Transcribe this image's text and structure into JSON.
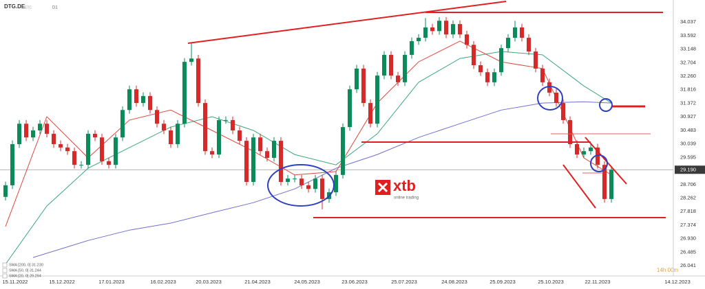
{
  "chart_data": {
    "type": "candlestick",
    "symbol": "DTG.DE",
    "symbol_note": "ETC",
    "timeframe": "D1",
    "countdown": "14h 00m",
    "logo": {
      "name": "xtb",
      "tagline": "online trading"
    },
    "colors": {
      "up": "#0b8a5a",
      "down": "#d42a2a"
    },
    "xlim": [
      -0.8,
      101.6
    ],
    "xticks": [
      {
        "value": 1.4,
        "label": "15.11.2022"
      },
      {
        "value": 8.2,
        "label": "15.12.2022"
      },
      {
        "value": 15.4,
        "label": "17.01.2023"
      },
      {
        "value": 22.9,
        "label": "16.02.2023"
      },
      {
        "value": 29.5,
        "label": "20.03.2023"
      },
      {
        "value": 36.6,
        "label": "21.04.2023"
      },
      {
        "value": 43.8,
        "label": "24.05.2023"
      },
      {
        "value": 50.7,
        "label": "23.06.2023"
      },
      {
        "value": 57.9,
        "label": "25.07.2023"
      },
      {
        "value": 65.2,
        "label": "24.08.2023"
      },
      {
        "value": 72.2,
        "label": "25.09.2023"
      },
      {
        "value": 79.2,
        "label": "25.10.2023"
      },
      {
        "value": 86,
        "label": "22.11.2023"
      },
      {
        "value": 97.6,
        "label": "14.12.2023"
      }
    ],
    "ylim": [
      25.75,
      34.76
    ],
    "yticks": [
      34.037,
      33.592,
      33.148,
      32.704,
      {
        "value": 32.26,
        "label": "32.260"
      },
      31.816,
      31.372,
      30.927,
      30.483,
      30.039,
      29.595,
      28.706,
      28.262,
      27.818,
      27.374,
      {
        "value": 26.93,
        "label": "26.930"
      },
      26.485,
      26.041
    ],
    "current_price": {
      "value": 29.19,
      "label": "29.190"
    },
    "open": [
      28.3,
      28.68,
      30.03,
      30.7,
      30.25,
      30.48,
      30.7,
      30.37,
      30.03,
      29.92,
      29.8,
      29.35,
      29.35,
      30.37,
      30.25,
      29.47,
      29.35,
      30.25,
      31.15,
      31.83,
      31.38,
      31.61,
      31.15,
      30.7,
      30.48,
      30.03,
      30.7,
      32.73,
      32.84,
      31.38,
      29.8,
      29.69,
      30.82,
      30.82,
      30.48,
      30.14,
      28.79,
      30.25,
      29.8,
      29.58,
      30.14,
      28.79,
      28.9,
      28.9,
      28.68,
      28.56,
      28.9,
      28.23,
      28.45,
      29.02,
      30.59,
      31.83,
      32.51,
      31.38,
      30.7,
      32.28,
      32.96,
      32.28,
      32.06,
      32.96,
      33.41,
      33.52,
      33.86,
      33.74,
      34.08,
      33.63,
      33.97,
      33.63,
      33.29,
      32.62,
      32.39,
      32.06,
      32.39,
      33.18,
      33.52,
      33.86,
      33.52,
      33.07,
      32.51,
      32.06,
      31.72,
      31.38,
      30.82,
      30.03,
      29.69,
      29.8,
      29.92,
      29.35,
      28.23
    ],
    "high": [
      28.8,
      30.15,
      30.82,
      30.82,
      30.6,
      30.82,
      30.82,
      30.49,
      30.15,
      30.04,
      29.92,
      29.47,
      30.49,
      30.49,
      30.37,
      29.59,
      30.37,
      31.27,
      31.95,
      31.95,
      31.73,
      31.73,
      31.27,
      30.82,
      30.6,
      30.82,
      32.85,
      33.36,
      32.96,
      31.5,
      29.92,
      30.94,
      30.94,
      30.94,
      30.6,
      30.26,
      30.37,
      30.37,
      29.92,
      30.26,
      30.26,
      29.02,
      29.02,
      29.02,
      28.8,
      29.02,
      29.02,
      28.57,
      29.14,
      30.71,
      31.95,
      32.63,
      32.63,
      31.5,
      32.4,
      33.08,
      33.08,
      32.4,
      33.08,
      33.53,
      33.64,
      34.17,
      33.98,
      34.2,
      34.2,
      34.09,
      34.09,
      33.75,
      33.41,
      32.74,
      32.51,
      32.51,
      33.3,
      33.64,
      34.08,
      33.98,
      33.64,
      33.19,
      32.63,
      32.18,
      31.84,
      31.5,
      30.94,
      30.15,
      29.92,
      30.04,
      30.04,
      29.47,
      29.31
    ],
    "low": [
      28.18,
      28.56,
      29.91,
      30.13,
      30.13,
      30.36,
      30.25,
      29.91,
      29.8,
      29.68,
      29.23,
      29.23,
      29.23,
      30.13,
      29.35,
      29.23,
      29.23,
      30.13,
      31.03,
      31.26,
      31.26,
      31.03,
      30.58,
      30.36,
      29.91,
      29.91,
      30.58,
      32.61,
      31.26,
      29.68,
      29.57,
      29.57,
      30.7,
      30.36,
      30.02,
      28.67,
      28.67,
      29.68,
      29.46,
      29.46,
      28.67,
      28.67,
      28.78,
      28.56,
      28.44,
      28.44,
      27.89,
      28.11,
      28.33,
      28.9,
      30.47,
      31.71,
      31.26,
      30.58,
      30.58,
      32.16,
      32.16,
      31.94,
      31.94,
      32.84,
      33.29,
      33.4,
      33.62,
      33.62,
      33.51,
      33.51,
      33.51,
      33.17,
      32.5,
      32.27,
      31.94,
      31.94,
      32.27,
      33.06,
      33.4,
      33.4,
      32.95,
      32.39,
      31.94,
      31.6,
      31.26,
      30.7,
      29.91,
      29.57,
      29.57,
      29.68,
      29.23,
      28.11,
      28.11
    ],
    "close": [
      28.68,
      30.03,
      30.7,
      30.25,
      30.48,
      30.7,
      30.37,
      30.03,
      29.92,
      29.8,
      29.35,
      29.35,
      30.37,
      30.25,
      29.47,
      29.35,
      30.25,
      31.15,
      31.83,
      31.38,
      31.61,
      31.15,
      30.7,
      30.48,
      30.03,
      30.7,
      32.73,
      32.84,
      31.38,
      29.8,
      29.69,
      30.82,
      30.82,
      30.48,
      30.14,
      28.79,
      30.25,
      29.8,
      29.58,
      30.14,
      28.79,
      28.9,
      28.9,
      28.68,
      28.56,
      28.9,
      28.23,
      28.45,
      29.02,
      30.59,
      31.83,
      32.51,
      31.38,
      30.7,
      32.28,
      32.96,
      32.28,
      32.06,
      32.96,
      33.41,
      33.52,
      33.86,
      33.74,
      34.08,
      33.63,
      33.97,
      33.63,
      33.29,
      32.62,
      32.39,
      32.06,
      32.39,
      33.18,
      33.52,
      33.86,
      33.52,
      33.07,
      32.51,
      32.06,
      31.72,
      31.38,
      30.82,
      30.03,
      29.69,
      29.8,
      29.92,
      29.35,
      28.23,
      29.19
    ],
    "series": [
      {
        "name": "SMA [200, 0]",
        "legend": "SMA [200, 0] 31.230",
        "color": "#6f6fd0",
        "x": [
          4,
          12,
          18,
          24,
          30,
          36,
          42,
          48,
          54,
          60,
          66,
          72,
          78,
          84,
          88
        ],
        "values": [
          26.31,
          26.87,
          27.21,
          27.44,
          27.78,
          28.11,
          28.56,
          29.24,
          29.69,
          30.25,
          30.7,
          31.15,
          31.38,
          31.42,
          31.38
        ]
      },
      {
        "name": "SMA [50, 0]",
        "legend": "SMA [50, 0] 31.244",
        "color": "#3aa87a",
        "x": [
          0,
          6,
          12,
          18,
          24,
          30,
          36,
          42,
          48,
          54,
          60,
          66,
          72,
          78,
          84,
          88
        ],
        "values": [
          26.09,
          28.0,
          29.24,
          29.92,
          30.59,
          30.93,
          30.48,
          29.69,
          29.35,
          30.37,
          32.06,
          32.84,
          33.07,
          32.96,
          31.94,
          31.38
        ]
      },
      {
        "name": "SMA [20, 0]",
        "legend": "SMA [20, 0] 29.294",
        "color": "#e0473c",
        "x": [
          0,
          6,
          12,
          18,
          24,
          30,
          36,
          42,
          48,
          54,
          60,
          66,
          72,
          78,
          84,
          88
        ],
        "values": [
          27.33,
          30.93,
          29.58,
          30.82,
          31.15,
          30.48,
          29.8,
          29.02,
          29.13,
          31.38,
          32.73,
          33.41,
          32.73,
          32.51,
          29.58,
          29.02
        ]
      }
    ]
  }
}
